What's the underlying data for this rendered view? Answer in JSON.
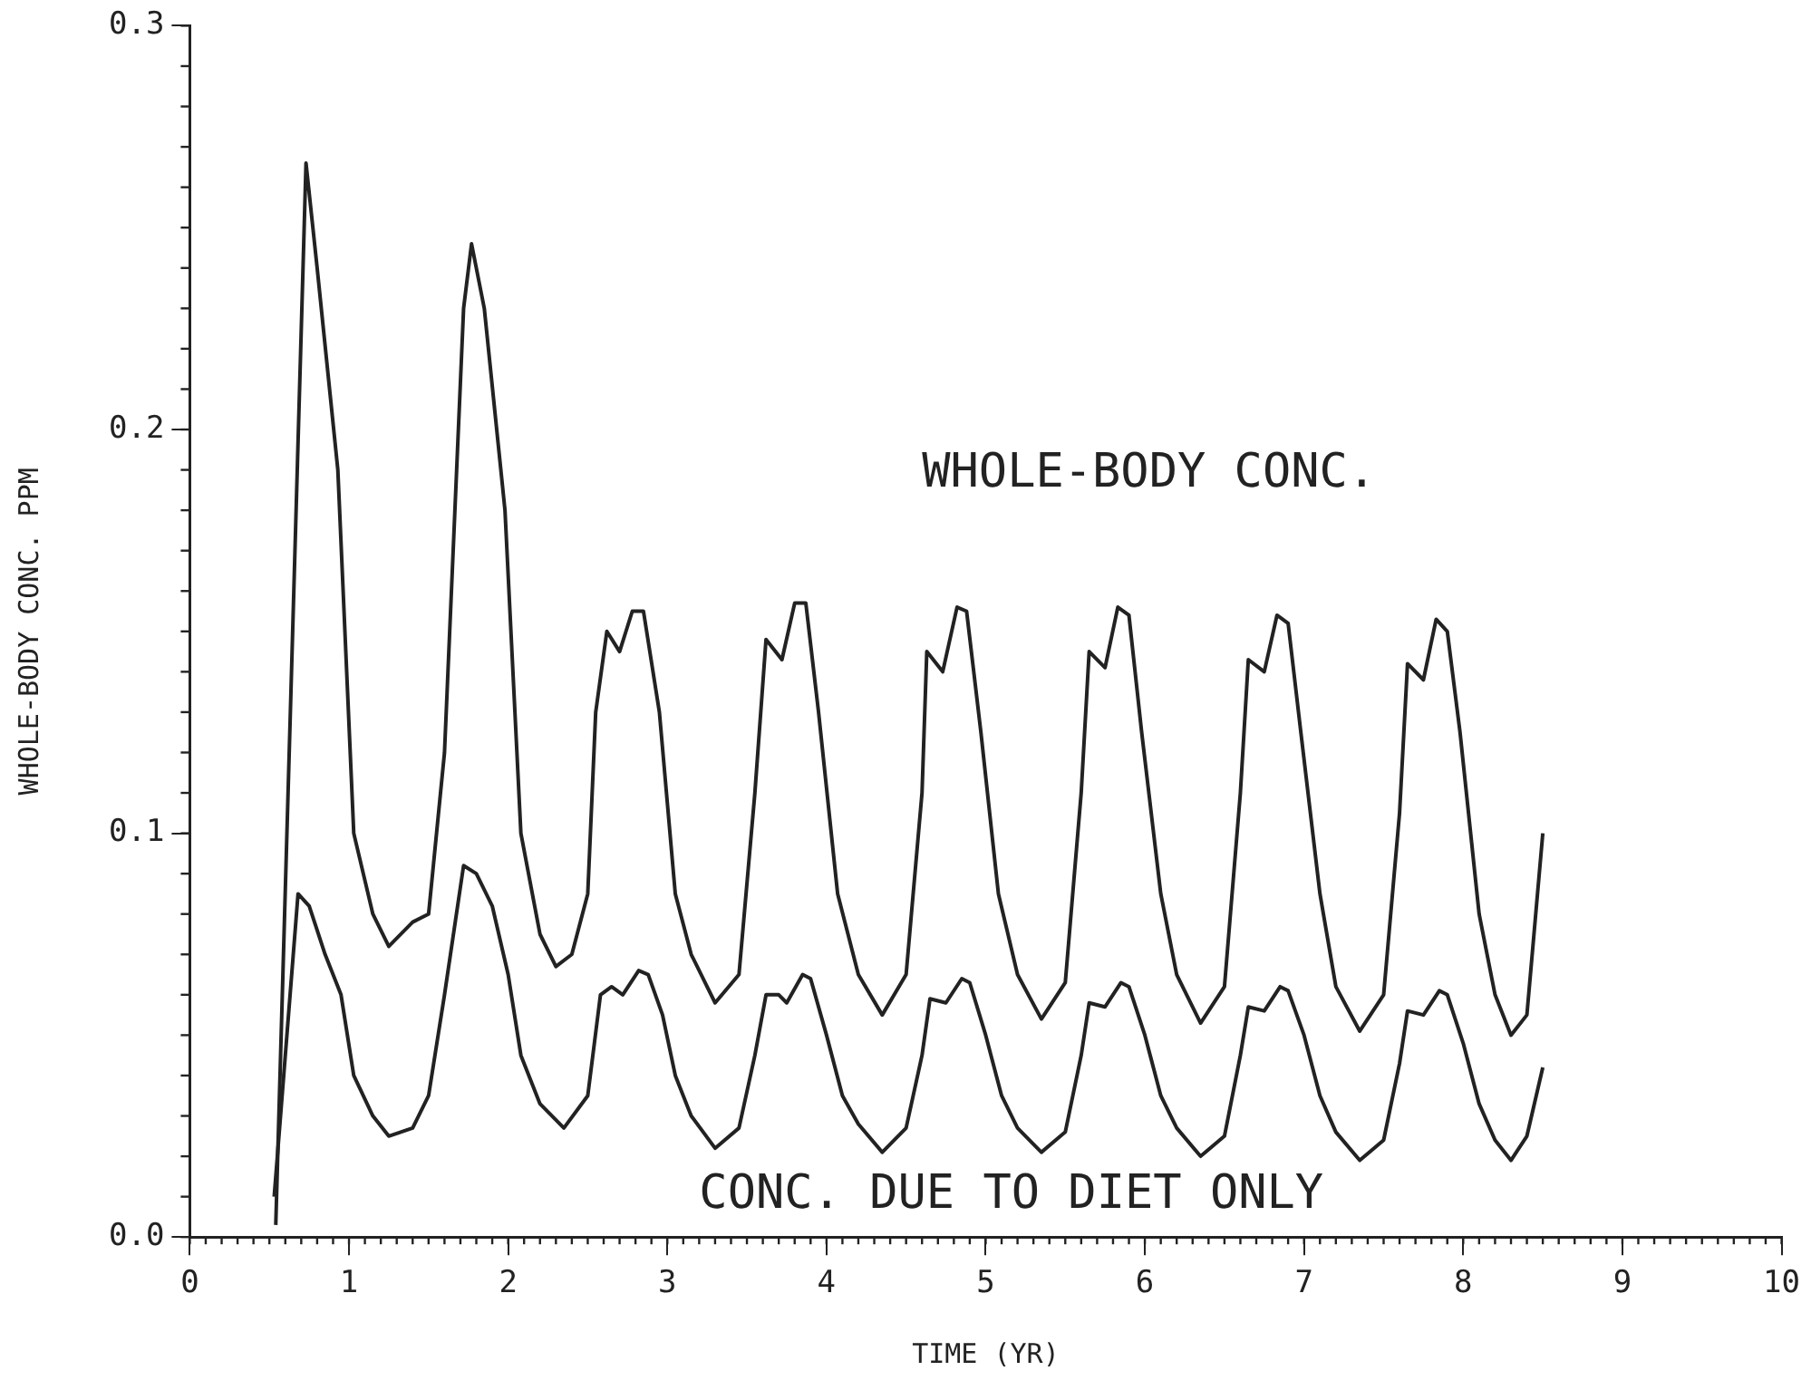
{
  "chart_data": {
    "type": "line",
    "xlabel": "TIME (YR)",
    "ylabel": "WHOLE-BODY CONC. PPM",
    "xlim": [
      0,
      10
    ],
    "xticks": [
      0,
      1,
      2,
      3,
      4,
      5,
      6,
      7,
      8,
      9,
      10
    ],
    "ylim": [
      0,
      0.3
    ],
    "yticks": [
      {
        "value": 0,
        "label": "0.0"
      },
      0.1,
      0.2,
      0.3
    ],
    "grid": false,
    "legend": false,
    "marker": "none",
    "line_style": "solid",
    "series": [
      {
        "name": "WHOLE-BODY CONC.",
        "color": "#222222",
        "x": [
          0.54,
          0.73,
          0.8,
          0.93,
          1.03,
          1.15,
          1.25,
          1.4,
          1.5,
          1.6,
          1.72,
          1.77,
          1.85,
          1.98,
          2.08,
          2.2,
          2.3,
          2.4,
          2.5,
          2.55,
          2.62,
          2.7,
          2.78,
          2.85,
          2.95,
          3.05,
          3.15,
          3.3,
          3.45,
          3.55,
          3.62,
          3.72,
          3.8,
          3.87,
          3.95,
          4.07,
          4.2,
          4.35,
          4.5,
          4.6,
          4.63,
          4.73,
          4.82,
          4.88,
          4.97,
          5.08,
          5.2,
          5.35,
          5.5,
          5.6,
          5.65,
          5.75,
          5.83,
          5.9,
          5.98,
          6.1,
          6.2,
          6.35,
          6.5,
          6.6,
          6.65,
          6.75,
          6.83,
          6.9,
          6.98,
          7.1,
          7.2,
          7.35,
          7.5,
          7.6,
          7.65,
          7.75,
          7.83,
          7.9,
          7.98,
          8.1,
          8.2,
          8.3,
          8.4,
          8.5
        ],
        "values": [
          0.003,
          0.266,
          0.24,
          0.19,
          0.1,
          0.08,
          0.072,
          0.078,
          0.08,
          0.12,
          0.23,
          0.246,
          0.23,
          0.18,
          0.1,
          0.075,
          0.067,
          0.07,
          0.085,
          0.13,
          0.15,
          0.145,
          0.155,
          0.155,
          0.13,
          0.085,
          0.07,
          0.058,
          0.065,
          0.11,
          0.148,
          0.143,
          0.157,
          0.157,
          0.13,
          0.085,
          0.065,
          0.055,
          0.065,
          0.11,
          0.145,
          0.14,
          0.156,
          0.155,
          0.125,
          0.085,
          0.065,
          0.054,
          0.063,
          0.11,
          0.145,
          0.141,
          0.156,
          0.154,
          0.125,
          0.085,
          0.065,
          0.053,
          0.062,
          0.11,
          0.143,
          0.14,
          0.154,
          0.152,
          0.125,
          0.085,
          0.062,
          0.051,
          0.06,
          0.105,
          0.142,
          0.138,
          0.153,
          0.15,
          0.125,
          0.08,
          0.06,
          0.05,
          0.055,
          0.1
        ]
      },
      {
        "name": "CONC. DUE TO DIET ONLY",
        "color": "#222222",
        "x": [
          0.53,
          0.68,
          0.75,
          0.85,
          0.95,
          1.03,
          1.15,
          1.25,
          1.4,
          1.5,
          1.6,
          1.72,
          1.8,
          1.9,
          2.0,
          2.08,
          2.2,
          2.35,
          2.5,
          2.58,
          2.65,
          2.72,
          2.82,
          2.88,
          2.97,
          3.05,
          3.15,
          3.3,
          3.45,
          3.55,
          3.62,
          3.7,
          3.75,
          3.85,
          3.9,
          4.0,
          4.1,
          4.2,
          4.35,
          4.5,
          4.6,
          4.65,
          4.75,
          4.85,
          4.9,
          5.0,
          5.1,
          5.2,
          5.35,
          5.5,
          5.6,
          5.65,
          5.75,
          5.85,
          5.9,
          6.0,
          6.1,
          6.2,
          6.35,
          6.5,
          6.6,
          6.65,
          6.75,
          6.85,
          6.9,
          7.0,
          7.1,
          7.2,
          7.35,
          7.5,
          7.6,
          7.65,
          7.75,
          7.85,
          7.9,
          8.0,
          8.1,
          8.2,
          8.3,
          8.4,
          8.5
        ],
        "values": [
          0.01,
          0.085,
          0.082,
          0.07,
          0.06,
          0.04,
          0.03,
          0.025,
          0.027,
          0.035,
          0.06,
          0.092,
          0.09,
          0.082,
          0.065,
          0.045,
          0.033,
          0.027,
          0.035,
          0.06,
          0.062,
          0.06,
          0.066,
          0.065,
          0.055,
          0.04,
          0.03,
          0.022,
          0.027,
          0.045,
          0.06,
          0.06,
          0.058,
          0.065,
          0.064,
          0.05,
          0.035,
          0.028,
          0.021,
          0.027,
          0.045,
          0.059,
          0.058,
          0.064,
          0.063,
          0.05,
          0.035,
          0.027,
          0.021,
          0.026,
          0.045,
          0.058,
          0.057,
          0.063,
          0.062,
          0.05,
          0.035,
          0.027,
          0.02,
          0.025,
          0.045,
          0.057,
          0.056,
          0.062,
          0.061,
          0.05,
          0.035,
          0.026,
          0.019,
          0.024,
          0.043,
          0.056,
          0.055,
          0.061,
          0.06,
          0.048,
          0.033,
          0.024,
          0.019,
          0.025,
          0.042
        ]
      }
    ]
  }
}
